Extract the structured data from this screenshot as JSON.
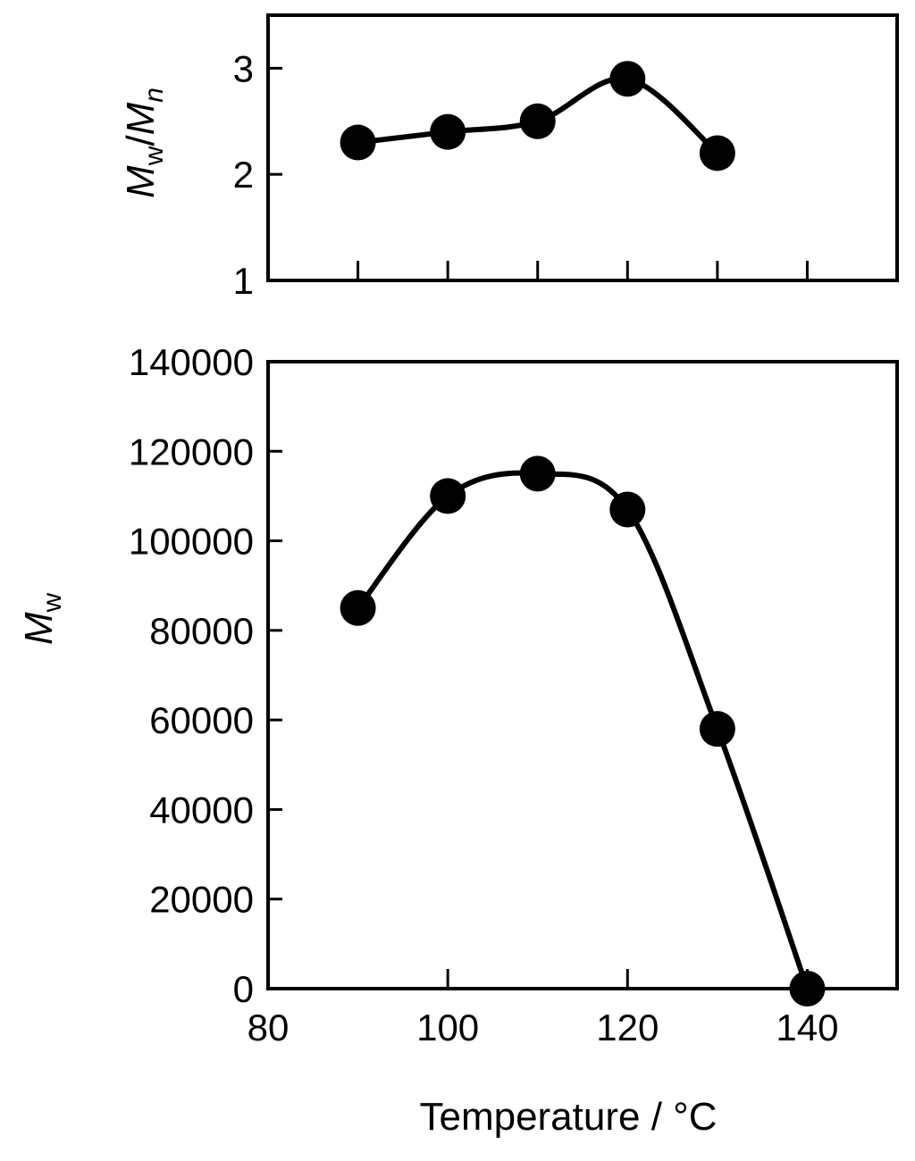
{
  "chart_data": [
    {
      "type": "line",
      "panel": "top",
      "ylabel": {
        "main": "M",
        "sub1": "w",
        "slash": "/",
        "main2": "M",
        "sub2": "n"
      },
      "xlim": [
        80,
        150
      ],
      "ylim": [
        1,
        3.5
      ],
      "yticks": [
        1,
        2,
        3
      ],
      "xticks": [
        80,
        90,
        100,
        110,
        120,
        130,
        140,
        150
      ],
      "x": [
        90,
        100,
        110,
        120,
        130
      ],
      "y": [
        2.3,
        2.4,
        2.5,
        2.9,
        2.2
      ],
      "marker": "filled-circle",
      "smooth_curve": true
    },
    {
      "type": "line",
      "panel": "bottom",
      "ylabel": {
        "main": "M",
        "sub1": "w"
      },
      "xlabel": "Temperature / °C",
      "xlim": [
        80,
        150
      ],
      "ylim": [
        0,
        140000
      ],
      "yticks": [
        0,
        20000,
        40000,
        60000,
        80000,
        100000,
        120000,
        140000
      ],
      "xticks": [
        80,
        100,
        120,
        140
      ],
      "x": [
        90,
        100,
        110,
        120,
        130,
        140
      ],
      "y": [
        85000,
        110000,
        115000,
        107000,
        58000,
        0
      ],
      "marker": "filled-circle",
      "smooth_curve": true
    }
  ]
}
